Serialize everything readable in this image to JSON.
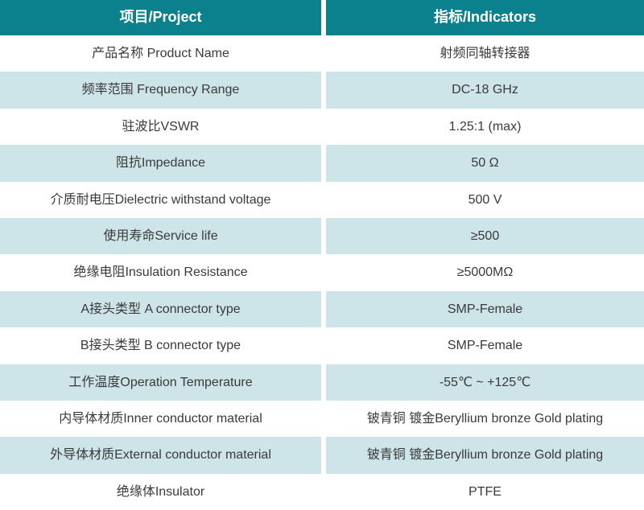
{
  "table": {
    "header": {
      "project_label": "项目/Project",
      "indicators_label": "指标/Indicators"
    },
    "rows": [
      {
        "project": "产品名称 Product Name",
        "indicator": "射频同轴转接器"
      },
      {
        "project": "频率范围 Frequency Range",
        "indicator": "DC-18 GHz"
      },
      {
        "project": "驻波比VSWR",
        "indicator": "1.25:1 (max)"
      },
      {
        "project": "阻抗Impedance",
        "indicator": "50 Ω"
      },
      {
        "project": "介质耐电压Dielectric withstand voltage",
        "indicator": "500 V"
      },
      {
        "project": "使用寿命Service life",
        "indicator": "≥500"
      },
      {
        "project": "绝缘电阻Insulation Resistance",
        "indicator": "≥5000MΩ"
      },
      {
        "project": "A接头类型 A connector type",
        "indicator": "SMP-Female"
      },
      {
        "project": "B接头类型 B connector type",
        "indicator": "SMP-Female"
      },
      {
        "project": "工作温度Operation Temperature",
        "indicator": "-55℃ ~ +125℃"
      },
      {
        "project": "内导体材质Inner conductor material",
        "indicator": "铍青铜 镀金Beryllium bronze Gold plating"
      },
      {
        "project": "外导体材质External conductor material",
        "indicator": "铍青铜 镀金Beryllium bronze Gold plating"
      },
      {
        "project": "绝缘体Insulator",
        "indicator": "PTFE"
      }
    ],
    "colors": {
      "header_bg": "#0b818e",
      "header_text": "#ffffff",
      "row_alt_bg": "#cde4e9",
      "row_bg": "#ffffff",
      "text": "#3a3a3a"
    }
  }
}
